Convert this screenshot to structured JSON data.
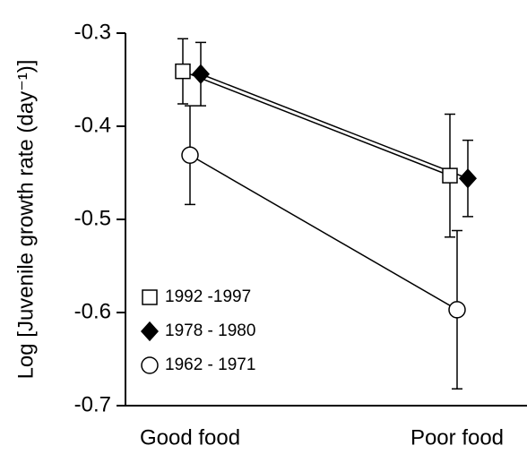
{
  "chart_data": {
    "type": "line",
    "ylabel": "Log [Juvenile growth rate (day⁻¹)]",
    "categories": [
      "Good food",
      "Poor food"
    ],
    "series": [
      {
        "name": "1992 -1997",
        "color": "#ffffff",
        "marker": "square",
        "values": [
          -0.341,
          -0.453
        ],
        "errors": [
          0.035,
          0.066
        ]
      },
      {
        "name": "1978 - 1980",
        "color": "#000000",
        "marker": "diamond",
        "values": [
          -0.344,
          -0.456
        ],
        "errors": [
          0.034,
          0.041
        ]
      },
      {
        "name": "1962 - 1971",
        "color": "#ffffff",
        "marker": "circle",
        "values": [
          -0.431,
          -0.597
        ],
        "errors": [
          0.053,
          0.085
        ]
      }
    ],
    "ylim": [
      -0.7,
      -0.3
    ],
    "yticks": [
      -0.3,
      -0.4,
      -0.5,
      -0.6,
      -0.7
    ],
    "grid": false,
    "legend": "lower left"
  }
}
